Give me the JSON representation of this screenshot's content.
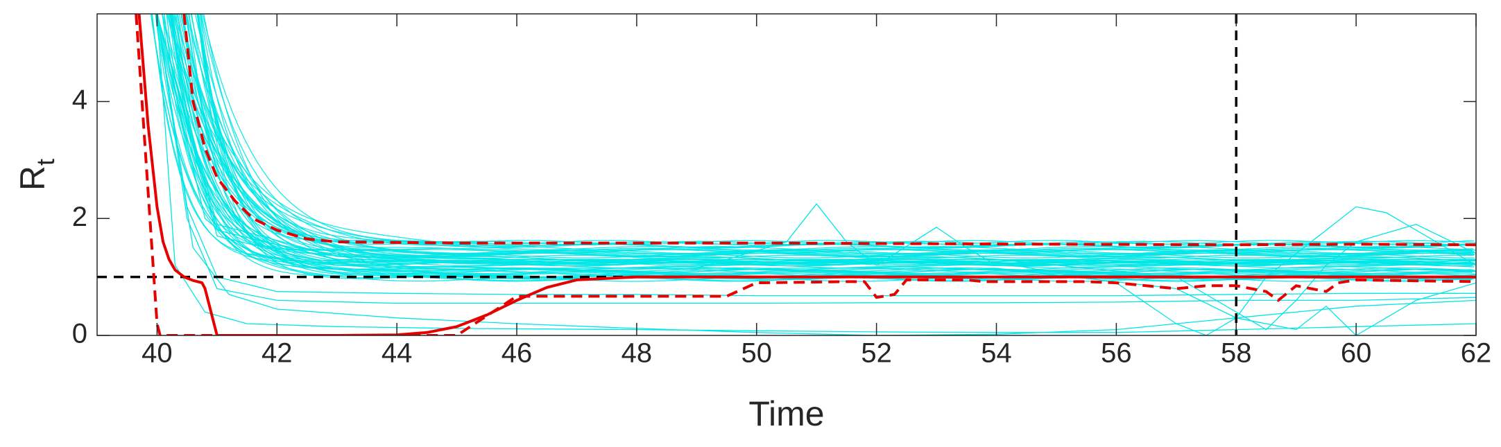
{
  "chart_data": {
    "type": "line",
    "xlabel": "Time",
    "ylabel_main": "R",
    "ylabel_sub": "t",
    "xlim": [
      39,
      62
    ],
    "ylim": [
      0,
      5.5
    ],
    "x_ticks": [
      40,
      42,
      44,
      46,
      48,
      50,
      52,
      54,
      56,
      58,
      60,
      62
    ],
    "y_ticks": [
      0,
      2,
      4
    ],
    "grid": false,
    "legend": "none",
    "reference_lines": [
      {
        "orientation": "horizontal",
        "value": 1,
        "color": "#000000",
        "style": "dashed"
      },
      {
        "orientation": "vertical",
        "value": 58,
        "color": "#000000",
        "style": "dashed"
      }
    ],
    "colors": {
      "samples": "#00E5E5",
      "estimate": "#E60000",
      "reference": "#000000",
      "axis": "#262626"
    },
    "sample_series": {
      "count": 60,
      "color": "#00E5E5",
      "settle_range": [
        0.95,
        1.6
      ],
      "decay_start_range": [
        39.7,
        40.6
      ],
      "decay_rate_range": [
        0.9,
        2.2
      ],
      "extra_paths": [
        {
          "x": [
            40,
            40.5,
            41,
            42,
            44,
            46,
            48,
            50,
            52,
            54,
            56,
            58,
            60,
            62
          ],
          "y": [
            5.5,
            2.0,
            0.8,
            0.6,
            0.55,
            0.55,
            0.55,
            0.55,
            0.56,
            0.56,
            0.57,
            0.6,
            0.6,
            0.65
          ]
        },
        {
          "x": [
            40,
            40.5,
            41,
            42,
            44,
            46,
            48,
            50,
            52,
            54,
            56,
            58,
            60,
            62
          ],
          "y": [
            5.5,
            2.2,
            1.0,
            0.75,
            0.72,
            0.7,
            0.7,
            0.68,
            0.68,
            0.68,
            0.68,
            0.7,
            0.72,
            0.72
          ]
        },
        {
          "x": [
            40,
            40.3,
            40.8,
            41.5,
            43,
            45,
            48,
            50,
            52,
            54,
            56,
            58,
            60,
            62
          ],
          "y": [
            5.5,
            1.2,
            0.4,
            0.2,
            0.15,
            0.12,
            0.1,
            0.08,
            0.06,
            0.05,
            0.05,
            0.1,
            0.15,
            0.2
          ]
        },
        {
          "x": [
            40,
            40.6,
            41.2,
            42,
            44,
            46,
            48,
            50,
            52,
            54,
            56,
            58,
            60,
            62
          ],
          "y": [
            5.5,
            1.5,
            0.7,
            0.45,
            0.3,
            0.2,
            0.12,
            0.05,
            0.0,
            0.02,
            0.1,
            0.3,
            0.5,
            0.6
          ]
        },
        {
          "x": [
            40,
            40.8,
            41.5,
            43,
            46,
            49,
            50.5,
            51,
            51.5,
            52,
            53,
            53.5,
            54,
            56,
            58,
            60,
            62
          ],
          "y": [
            5.5,
            2.0,
            1.4,
            1.2,
            1.15,
            1.15,
            1.6,
            2.25,
            1.6,
            1.2,
            1.85,
            1.5,
            1.2,
            1.2,
            1.25,
            1.3,
            1.3
          ]
        },
        {
          "x": [
            40,
            41,
            43,
            46,
            50,
            54,
            56,
            57,
            57.5,
            58,
            58.5,
            59,
            60,
            60.5,
            61,
            62
          ],
          "y": [
            5.5,
            1.8,
            1.3,
            1.25,
            1.25,
            1.25,
            0.9,
            0.2,
            0.0,
            0.3,
            1.0,
            1.4,
            2.2,
            2.1,
            1.8,
            1.2
          ]
        },
        {
          "x": [
            40,
            41,
            43,
            46,
            50,
            54,
            57,
            58,
            58.5,
            59,
            59.5,
            60,
            61,
            62
          ],
          "y": [
            5.5,
            1.9,
            1.35,
            1.3,
            1.3,
            1.3,
            1.0,
            0.4,
            0.1,
            0.6,
            1.2,
            1.6,
            1.9,
            1.4
          ]
        },
        {
          "x": [
            40,
            41,
            43,
            46,
            50,
            54,
            57,
            58,
            59,
            59.5,
            60,
            60.5,
            61,
            62
          ],
          "y": [
            5.5,
            1.7,
            1.2,
            1.15,
            1.15,
            1.15,
            0.8,
            0.3,
            0.1,
            0.5,
            0.0,
            0.3,
            0.6,
            0.9
          ]
        }
      ]
    },
    "series": [
      {
        "color": "#E60000",
        "style": "solid",
        "x": [
          39.7,
          39.85,
          40.0,
          40.1,
          40.2,
          40.3,
          40.45,
          40.6,
          40.75,
          40.8,
          41.0,
          42,
          43,
          44,
          44.5,
          45,
          45.5,
          46,
          46.5,
          47,
          48,
          50,
          52,
          54,
          56,
          58,
          60,
          62
        ],
        "y": [
          5.5,
          3.6,
          2.2,
          1.6,
          1.3,
          1.12,
          1.0,
          0.94,
          0.9,
          0.8,
          0.0,
          0.0,
          0.0,
          0.01,
          0.05,
          0.15,
          0.35,
          0.6,
          0.82,
          0.95,
          1.0,
          1.0,
          1.0,
          1.0,
          1.0,
          1.0,
          1.0,
          1.0
        ]
      },
      {
        "color": "#E60000",
        "style": "dashed",
        "x": [
          39.65,
          40.0,
          40.05,
          41.0,
          45.0,
          46.0,
          49.5,
          50.0,
          51.5,
          51.8,
          52.0,
          52.3,
          52.5,
          53.5,
          53.8,
          55.5,
          56.0,
          57.0,
          57.5,
          58.0,
          58.5,
          58.7,
          59.0,
          59.5,
          59.7,
          60.0,
          62
        ],
        "y": [
          5.5,
          0.2,
          0.0,
          0.0,
          0.0,
          0.67,
          0.67,
          0.9,
          0.92,
          0.92,
          0.65,
          0.7,
          0.95,
          0.95,
          0.92,
          0.92,
          0.9,
          0.8,
          0.85,
          0.85,
          0.75,
          0.6,
          0.85,
          0.75,
          0.9,
          0.95,
          0.92
        ]
      },
      {
        "color": "#E60000",
        "style": "dashed",
        "x": [
          40.45,
          40.6,
          40.8,
          41.0,
          41.3,
          41.6,
          42.0,
          42.5,
          43.0,
          45.0,
          50.0,
          55.0,
          58.0,
          60.0,
          62
        ],
        "y": [
          5.5,
          4.0,
          3.2,
          2.7,
          2.3,
          2.0,
          1.8,
          1.65,
          1.6,
          1.58,
          1.58,
          1.56,
          1.55,
          1.56,
          1.55
        ]
      }
    ]
  }
}
